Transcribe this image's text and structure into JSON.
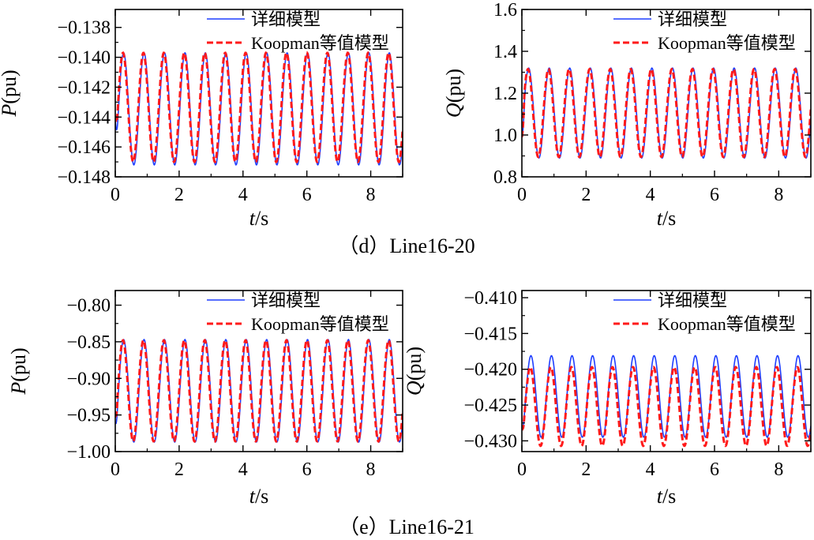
{
  "colors": {
    "detailed": "#1f3fff",
    "koopman": "#ff1a1a",
    "axis": "#000000"
  },
  "legend": {
    "detailed": "详细模型",
    "koopman": "Koopman等值模型"
  },
  "captions": {
    "d": "（d）Line16-20",
    "e": "（e）Line16-21"
  },
  "chart_data": [
    {
      "id": "d_P",
      "type": "line",
      "xlabel": "t/s",
      "ylabel": "P(pu)",
      "ylabel_var": "P",
      "ylabel_unit": "(pu)",
      "xlim": [
        0,
        9
      ],
      "ylim": [
        -0.148,
        -0.1368
      ],
      "xticks": [
        0,
        2,
        4,
        6,
        8
      ],
      "yticks": [
        -0.148,
        -0.146,
        -0.144,
        -0.142,
        -0.14,
        -0.138
      ],
      "xtick_labels": [
        "0",
        "2",
        "4",
        "6",
        "8"
      ],
      "ytick_labels": [
        "−0.148",
        "−0.146",
        "−0.144",
        "−0.142",
        "−0.140",
        "−0.138"
      ],
      "legend_position": "top-right",
      "series": [
        {
          "name": "详细模型",
          "mean": -0.14345,
          "amp": 0.00375,
          "period": 0.64,
          "phase": 1.0,
          "t0": -0.1441
        },
        {
          "name": "Koopman等值模型",
          "mean": -0.14335,
          "amp": 0.00365,
          "period": 0.64,
          "phase": 0.8,
          "t0": -0.1439
        }
      ]
    },
    {
      "id": "d_Q",
      "type": "line",
      "xlabel": "t/s",
      "ylabel": "Q(pu)",
      "ylabel_var": "Q",
      "ylabel_unit": "(pu)",
      "xlim": [
        0,
        9
      ],
      "ylim": [
        0.8,
        1.6
      ],
      "xticks": [
        0,
        2,
        4,
        6,
        8
      ],
      "yticks": [
        0.8,
        1.0,
        1.2,
        1.4,
        1.6
      ],
      "xtick_labels": [
        "0",
        "2",
        "4",
        "6",
        "8"
      ],
      "ytick_labels": [
        "0.8",
        "1.0",
        "1.2",
        "1.4",
        "1.6"
      ],
      "legend_position": "top-right",
      "series": [
        {
          "name": "详细模型",
          "mean": 1.105,
          "amp": 0.215,
          "period": 0.64,
          "phase": 0.5,
          "t0": 0.99
        },
        {
          "name": "Koopman等值模型",
          "mean": 1.105,
          "amp": 0.21,
          "period": 0.64,
          "phase": 0.3,
          "t0": 0.99
        }
      ]
    },
    {
      "id": "e_P",
      "type": "line",
      "xlabel": "t/s",
      "ylabel": "P(pu)",
      "ylabel_var": "P",
      "ylabel_unit": "(pu)",
      "xlim": [
        0,
        9
      ],
      "ylim": [
        -1.0,
        -0.78
      ],
      "xticks": [
        0,
        2,
        4,
        6,
        8
      ],
      "yticks": [
        -1.0,
        -0.95,
        -0.9,
        -0.85,
        -0.8
      ],
      "xtick_labels": [
        "0",
        "2",
        "4",
        "6",
        "8"
      ],
      "ytick_labels": [
        "−1.00",
        "−0.95",
        "−0.90",
        "−0.85",
        "−0.80"
      ],
      "legend_position": "top-right",
      "series": [
        {
          "name": "详细模型",
          "mean": -0.917,
          "amp": 0.07,
          "period": 0.64,
          "phase": 1.0,
          "t0": -0.96
        },
        {
          "name": "Koopman等值模型",
          "mean": -0.917,
          "amp": 0.069,
          "period": 0.64,
          "phase": 0.8,
          "t0": -0.95
        }
      ]
    },
    {
      "id": "e_Q",
      "type": "line",
      "xlabel": "t/s",
      "ylabel": "Q(pu)",
      "ylabel_var": "Q",
      "ylabel_unit": "(pu)",
      "xlim": [
        0,
        9
      ],
      "ylim": [
        -0.4315,
        -0.409
      ],
      "xticks": [
        0,
        2,
        4,
        6,
        8
      ],
      "yticks": [
        -0.43,
        -0.425,
        -0.42,
        -0.415,
        -0.41
      ],
      "xtick_labels": [
        "0",
        "2",
        "4",
        "6",
        "8"
      ],
      "ytick_labels": [
        "−0.430",
        "−0.425",
        "−0.420",
        "−0.415",
        "−0.410"
      ],
      "legend_position": "top-right",
      "series": [
        {
          "name": "详细模型",
          "mean": -0.4238,
          "amp": 0.0057,
          "period": 0.64,
          "phase": 1.2,
          "t0": -0.428
        },
        {
          "name": "Koopman等值模型",
          "mean": -0.4252,
          "amp": 0.0055,
          "period": 0.64,
          "phase": 1.0,
          "t0": -0.428
        }
      ]
    }
  ]
}
